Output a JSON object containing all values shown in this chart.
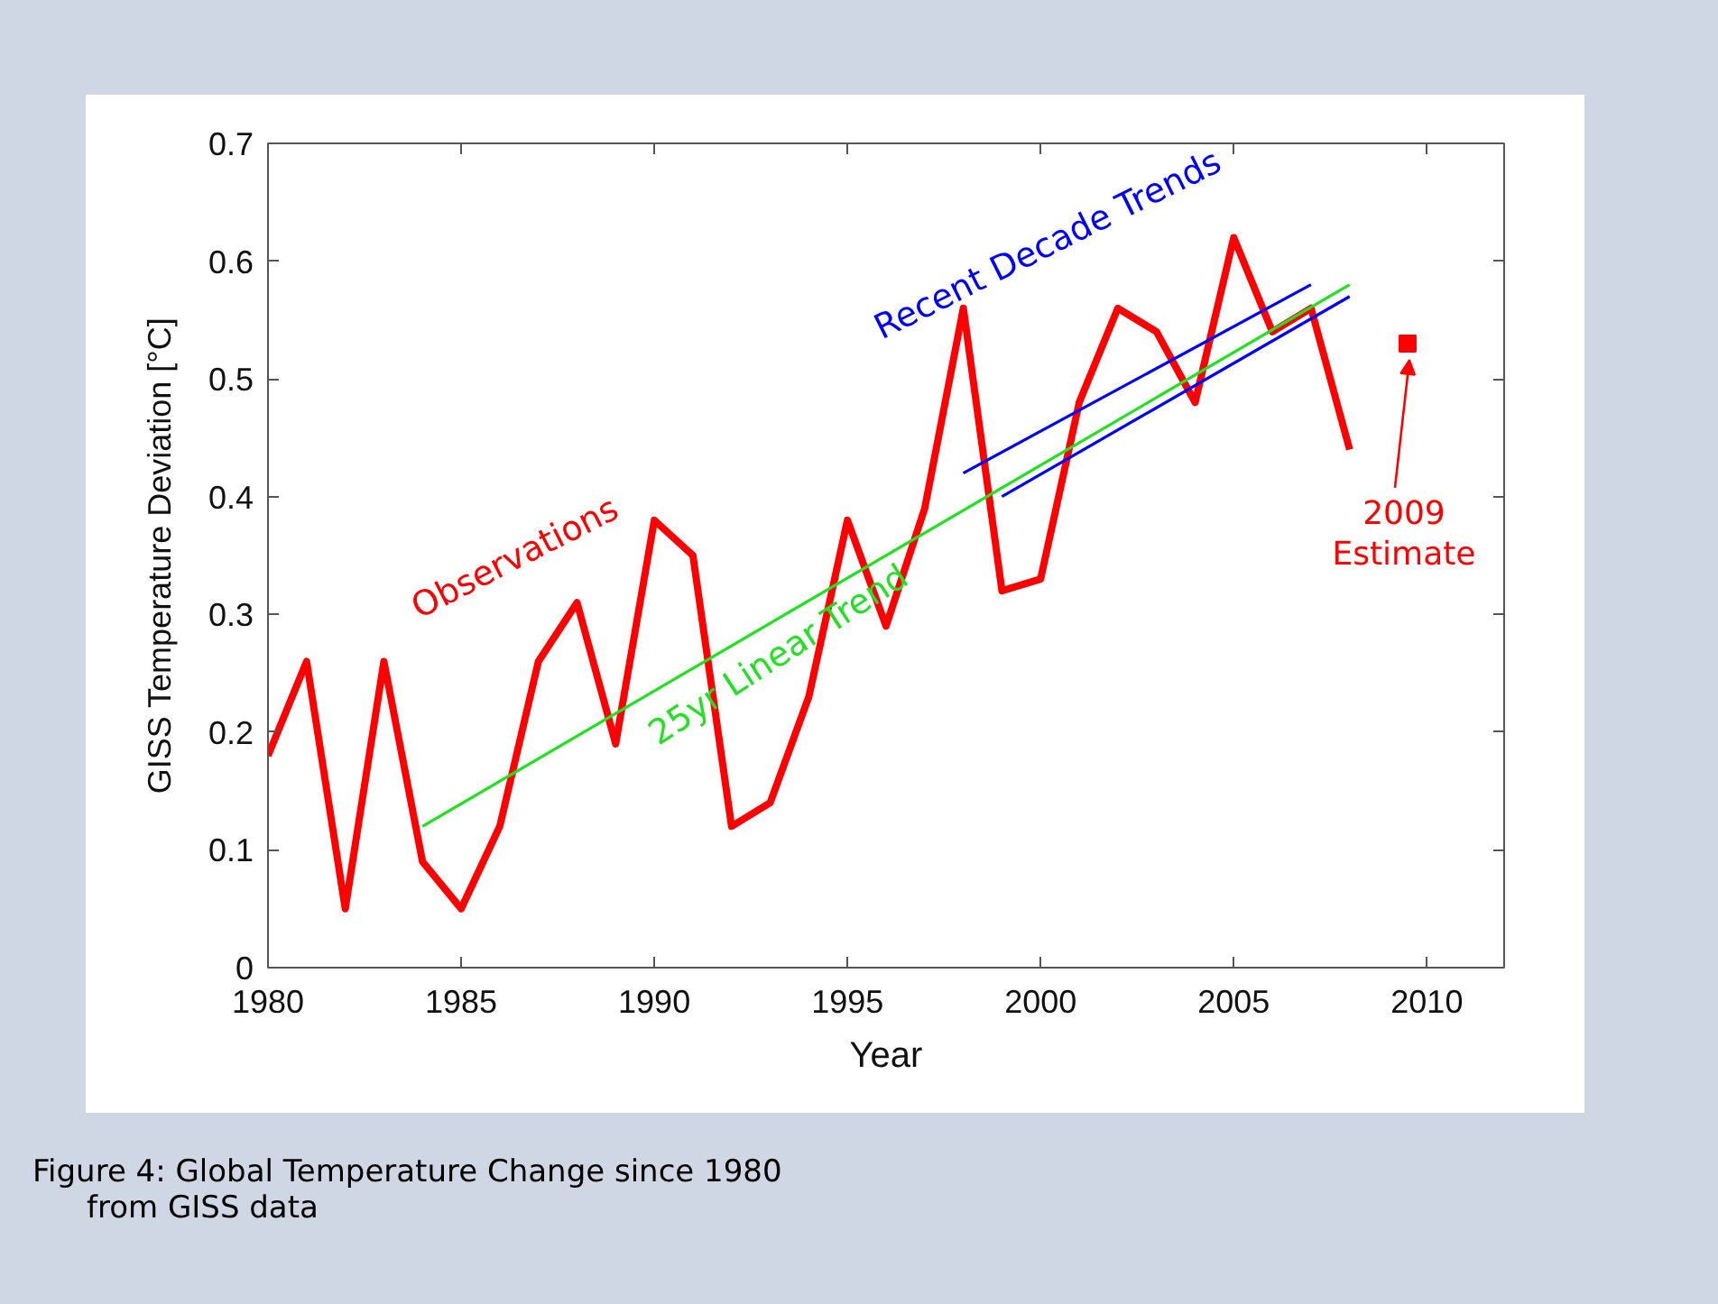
{
  "chart_data": {
    "type": "line",
    "xlabel": "Year",
    "ylabel": "GISS Temperature Deviation [°C]",
    "xlim": [
      1980,
      2012
    ],
    "ylim": [
      0,
      0.7
    ],
    "xticks": [
      1980,
      1985,
      1990,
      1995,
      2000,
      2005,
      2010
    ],
    "yticks": [
      0,
      0.1,
      0.2,
      0.3,
      0.4,
      0.5,
      0.6,
      0.7
    ],
    "grid": false,
    "series": [
      {
        "name": "Observations",
        "color": "#ff0000",
        "x": [
          1980,
          1981,
          1982,
          1983,
          1984,
          1985,
          1986,
          1987,
          1988,
          1989,
          1990,
          1991,
          1992,
          1993,
          1994,
          1995,
          1996,
          1997,
          1998,
          1999,
          2000,
          2001,
          2002,
          2003,
          2004,
          2005,
          2006,
          2007,
          2008
        ],
        "values": [
          0.18,
          0.26,
          0.05,
          0.26,
          0.09,
          0.05,
          0.12,
          0.26,
          0.31,
          0.19,
          0.38,
          0.35,
          0.12,
          0.14,
          0.23,
          0.38,
          0.29,
          0.39,
          0.56,
          0.32,
          0.33,
          0.48,
          0.56,
          0.54,
          0.48,
          0.62,
          0.54,
          0.56,
          0.44
        ]
      },
      {
        "name": "2009 Estimate",
        "type": "scatter",
        "marker": "square",
        "color": "#ff0000",
        "x": [
          2009.5
        ],
        "values": [
          0.53
        ]
      },
      {
        "name": "25yr Linear Trend",
        "color": "#22e022",
        "x": [
          1984,
          2008
        ],
        "values": [
          0.12,
          0.58
        ]
      },
      {
        "name": "Recent Decade Trends",
        "color": "#0000ff",
        "x": [
          1998,
          2007
        ],
        "values": [
          0.42,
          0.58
        ]
      },
      {
        "color": "#0000ff",
        "x": [
          1999,
          2008
        ],
        "values": [
          0.4,
          0.57
        ]
      }
    ],
    "annotations": [
      "Figure 4: Global Temperature Change since 1980\nfrom GISS data"
    ]
  }
}
